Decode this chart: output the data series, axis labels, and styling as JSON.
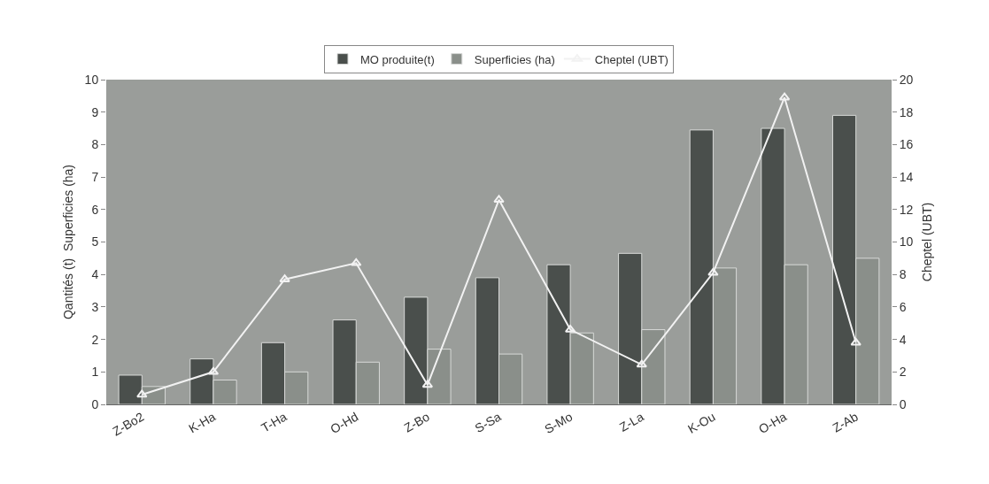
{
  "chart_data": {
    "type": "bar",
    "ylabel": "Qantités (t)  Superficies (ha)",
    "y2label": "Cheptel (UBT)",
    "categories": [
      "Z-Bo2",
      "K-Ha",
      "T-Ha",
      "O-Hd",
      "Z-Bo",
      "S-Sa",
      "S-Mo",
      "Z-La",
      "K-Ou",
      "O-Ha",
      "Z-Ab"
    ],
    "series": [
      {
        "name": "MO produite(t)",
        "color": "#4a4f4c",
        "values": [
          0.9,
          1.4,
          1.9,
          2.6,
          3.3,
          3.9,
          4.3,
          4.65,
          8.45,
          8.5,
          8.9
        ]
      },
      {
        "name": "Superficies (ha)",
        "color": "#8a8f8a",
        "values": [
          0.55,
          0.75,
          1.0,
          1.3,
          1.7,
          1.55,
          2.2,
          2.3,
          4.2,
          4.3,
          4.5
        ]
      },
      {
        "name": "Cheptel (UBT)",
        "type": "line",
        "axis": "y2",
        "color": "#f2f2f2",
        "marker": "triangle",
        "values": [
          0.6,
          2.0,
          7.7,
          8.7,
          1.2,
          12.6,
          4.6,
          2.45,
          8.1,
          18.9,
          3.8
        ]
      }
    ],
    "ylim": [
      0,
      10
    ],
    "yticks": [
      0,
      1,
      2,
      3,
      4,
      5,
      6,
      7,
      8,
      9,
      10
    ],
    "y2lim": [
      0,
      20
    ],
    "y2ticks": [
      0,
      2,
      4,
      6,
      8,
      10,
      12,
      14,
      16,
      18,
      20
    ],
    "grid": false,
    "legend": "top"
  }
}
